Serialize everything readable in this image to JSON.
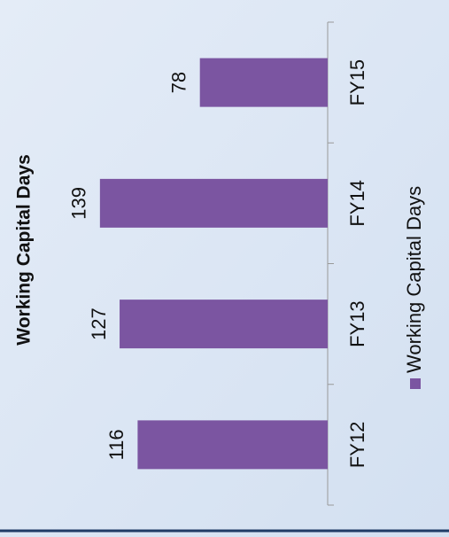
{
  "chart_data": {
    "type": "bar",
    "title": "Working Capital Days",
    "categories": [
      "FY12",
      "FY13",
      "FY14",
      "FY15"
    ],
    "series": [
      {
        "name": "Working Capital Days",
        "color": "#7b55a1",
        "values": [
          116,
          127,
          139,
          78
        ]
      }
    ]
  }
}
